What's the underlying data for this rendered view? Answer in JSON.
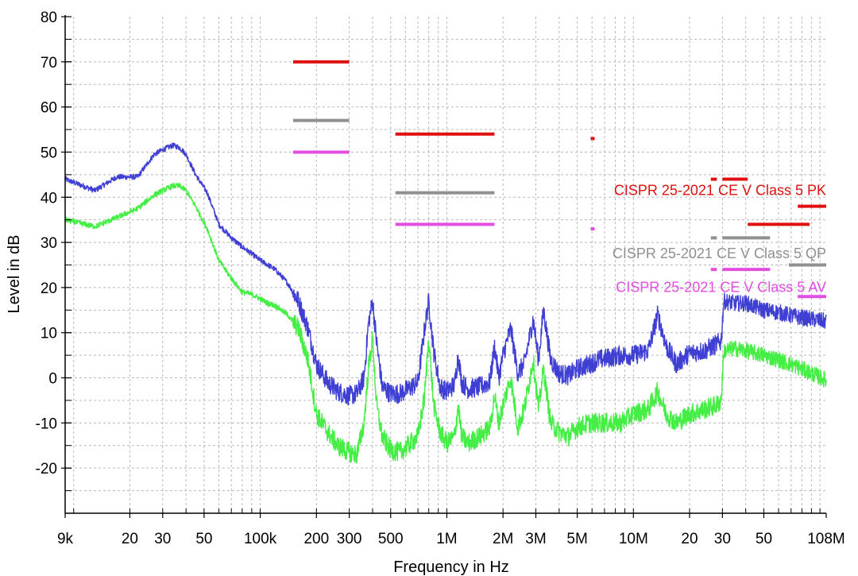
{
  "chart_data": {
    "type": "line",
    "xscale": "log",
    "xlabel": "Frequency in Hz",
    "ylabel": "Level in dB",
    "xlim": [
      9000,
      108000000
    ],
    "ylim": [
      -30,
      80
    ],
    "grid": true,
    "x_ticks": [
      {
        "value": 9000,
        "label": "9k"
      },
      {
        "value": 20000,
        "label": "20"
      },
      {
        "value": 30000,
        "label": "30"
      },
      {
        "value": 50000,
        "label": "50"
      },
      {
        "value": 100000,
        "label": "100k"
      },
      {
        "value": 200000,
        "label": "200"
      },
      {
        "value": 300000,
        "label": "300"
      },
      {
        "value": 500000,
        "label": "500"
      },
      {
        "value": 1000000,
        "label": "1M"
      },
      {
        "value": 2000000,
        "label": "2M"
      },
      {
        "value": 3000000,
        "label": "3M"
      },
      {
        "value": 5000000,
        "label": "5M"
      },
      {
        "value": 10000000,
        "label": "10M"
      },
      {
        "value": 20000000,
        "label": "20"
      },
      {
        "value": 30000000,
        "label": "30"
      },
      {
        "value": 50000000,
        "label": "50"
      },
      {
        "value": 108000000,
        "label": "108M"
      }
    ],
    "y_ticks": [
      -20,
      -10,
      0,
      10,
      20,
      30,
      40,
      50,
      60,
      70,
      80
    ],
    "series": [
      {
        "color": "#3f3fd4",
        "x": [
          9000,
          13000,
          17000,
          22000,
          27000,
          30000,
          34000,
          37000,
          40000,
          45000,
          52000,
          60000,
          70000,
          80000,
          90000,
          100000,
          110000,
          120000,
          130000,
          140000,
          160000,
          180000,
          200000,
          230000,
          260000,
          300000,
          330000,
          360000,
          380000,
          400000,
          420000,
          450000,
          500000,
          560000,
          620000,
          700000,
          760000,
          800000,
          850000,
          920000,
          1000000,
          1100000,
          1150000,
          1200000,
          1300000,
          1500000,
          1700000,
          1800000,
          1900000,
          2000000,
          2200000,
          2400000,
          2600000,
          2900000,
          3100000,
          3300000,
          3600000,
          4000000,
          4500000,
          5000000,
          5800000,
          6500000,
          7500000,
          8500000,
          10000000,
          12000000,
          13500000,
          15000000,
          17000000,
          20000000,
          24000000,
          28000000,
          29500000,
          30500000,
          35000000,
          40000000,
          50000000,
          60000000,
          75000000,
          90000000,
          108000000
        ],
        "y": [
          44,
          41.5,
          44.5,
          44.5,
          49.5,
          50.5,
          51.5,
          51,
          49.5,
          45,
          41,
          34,
          31,
          29,
          27.5,
          26,
          25,
          24,
          22.5,
          21,
          17,
          11,
          3,
          -1,
          -3,
          -4,
          -3.5,
          0,
          12,
          17,
          8,
          -2,
          -3.5,
          -3.5,
          -2.5,
          -1,
          11,
          17,
          6,
          -2,
          -3,
          -1.5,
          5,
          -1,
          -2.5,
          -2,
          -1,
          7,
          0,
          5,
          11,
          1,
          3,
          13,
          4,
          15,
          4,
          1,
          0.5,
          2,
          3,
          4,
          4.5,
          5,
          5,
          6,
          14,
          7,
          3,
          5.5,
          6,
          7.5,
          8,
          17,
          16.5,
          16.5,
          15,
          14.5,
          13.5,
          13,
          12.5
        ]
      },
      {
        "color": "#44ee44",
        "x": [
          9000,
          13000,
          17000,
          22000,
          27000,
          30000,
          34000,
          37000,
          40000,
          45000,
          52000,
          60000,
          70000,
          80000,
          90000,
          100000,
          110000,
          120000,
          130000,
          140000,
          160000,
          180000,
          200000,
          230000,
          260000,
          300000,
          330000,
          360000,
          380000,
          400000,
          420000,
          450000,
          500000,
          560000,
          620000,
          700000,
          760000,
          800000,
          850000,
          920000,
          1000000,
          1100000,
          1150000,
          1200000,
          1300000,
          1500000,
          1700000,
          1800000,
          1900000,
          2000000,
          2200000,
          2400000,
          2600000,
          2900000,
          3100000,
          3300000,
          3600000,
          4000000,
          4500000,
          5000000,
          5800000,
          6500000,
          7500000,
          8500000,
          10000000,
          12000000,
          13500000,
          15000000,
          17000000,
          20000000,
          24000000,
          28000000,
          29500000,
          30500000,
          35000000,
          40000000,
          50000000,
          60000000,
          75000000,
          90000000,
          108000000
        ],
        "y": [
          35,
          33.5,
          35.5,
          37.5,
          40.5,
          41.5,
          42.5,
          42.5,
          41.5,
          38,
          33,
          26,
          22,
          19,
          18.5,
          17.5,
          16.5,
          16,
          15,
          14,
          11,
          4,
          -8,
          -12,
          -15,
          -16.5,
          -17,
          -10,
          2,
          9,
          -6,
          -13,
          -16,
          -16.5,
          -15,
          -13,
          -4,
          9,
          -6,
          -12,
          -14.5,
          -13,
          -6,
          -13,
          -14.5,
          -13,
          -11,
          -4,
          -10,
          -6,
          0,
          -11,
          -7,
          4,
          -7,
          2,
          -10,
          -12,
          -13,
          -11,
          -10,
          -10,
          -10,
          -10,
          -8,
          -7,
          -3,
          -8,
          -10,
          -8,
          -7,
          -6,
          -5,
          6,
          6.5,
          6,
          5,
          4,
          2.5,
          1,
          -0.5
        ]
      }
    ],
    "limits": [
      {
        "name": "CISPR 25-2021 CE V Class 5 PK",
        "color": "#e01010",
        "segments": [
          {
            "x1": 150000,
            "x2": 300000,
            "y": 70
          },
          {
            "x1": 530000,
            "x2": 1800000,
            "y": 54
          },
          {
            "x1": 5900000,
            "x2": 6200000,
            "y": 53
          },
          {
            "x1": 26000000,
            "x2": 28000000,
            "y": 44
          },
          {
            "x1": 30000000,
            "x2": 41000000,
            "y": 44
          },
          {
            "x1": 41000000,
            "x2": 88000000,
            "y": 34
          },
          {
            "x1": 76000000,
            "x2": 108000000,
            "y": 38
          }
        ]
      },
      {
        "name": "CISPR 25-2021 CE V Class 5 QP",
        "color": "#909090",
        "segments": [
          {
            "x1": 150000,
            "x2": 300000,
            "y": 57
          },
          {
            "x1": 530000,
            "x2": 1800000,
            "y": 41
          },
          {
            "x1": 26000000,
            "x2": 28000000,
            "y": 31
          },
          {
            "x1": 30000000,
            "x2": 54000000,
            "y": 31
          },
          {
            "x1": 68000000,
            "x2": 108000000,
            "y": 25
          }
        ]
      },
      {
        "name": "CISPR 25-2021 CE V Class 5 AV",
        "color": "#e24ee2",
        "segments": [
          {
            "x1": 150000,
            "x2": 300000,
            "y": 50
          },
          {
            "x1": 530000,
            "x2": 1800000,
            "y": 34
          },
          {
            "x1": 5900000,
            "x2": 6200000,
            "y": 33
          },
          {
            "x1": 26000000,
            "x2": 28000000,
            "y": 24
          },
          {
            "x1": 30000000,
            "x2": 54000000,
            "y": 24
          },
          {
            "x1": 76000000,
            "x2": 108000000,
            "y": 18
          }
        ]
      }
    ]
  }
}
